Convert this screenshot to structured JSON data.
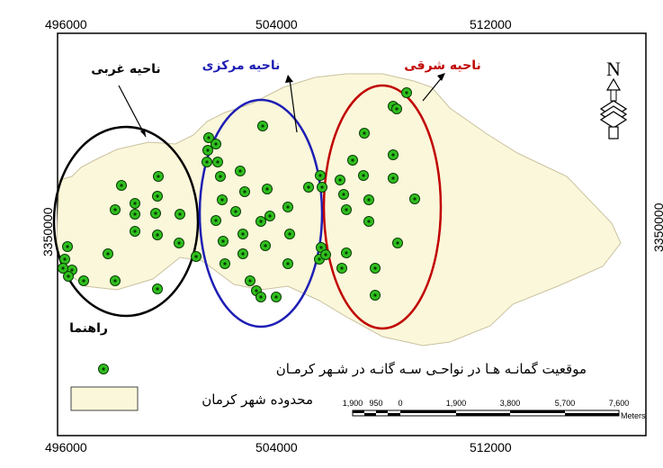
{
  "grid": {
    "top": [
      "496000",
      "504000",
      "512000"
    ],
    "bottom": [
      "496000",
      "504000",
      "512000"
    ],
    "left": "3350000",
    "right": "3350000"
  },
  "regions": {
    "west": {
      "label": "ناحیه غربی",
      "color": "#000000"
    },
    "central": {
      "label": "ناحیه مرکزی",
      "color": "#1e1eb4"
    },
    "east": {
      "label": "ناحیه شرقی",
      "color": "#c00000"
    }
  },
  "north_arrow": {
    "label": "N"
  },
  "legend": {
    "title": "راهنما",
    "points_label": "موقعیت گمانـه هـا در نواحـی سـه گانـه در شـهر کرمـان",
    "area_label": "محدوده شهر کرمان"
  },
  "scale_bar": {
    "ticks": [
      "1,900",
      "950",
      "0",
      "1,900",
      "3,800",
      "5,700",
      "7,600"
    ],
    "unit": "Meters"
  },
  "colors": {
    "city_fill": "#fbf7da",
    "point_fill": "#2fbf1e",
    "point_center": "#0b3a05"
  },
  "boreholes": {
    "west": [
      [
        75,
        274
      ],
      [
        72,
        288
      ],
      [
        80,
        300
      ],
      [
        76,
        307
      ],
      [
        70,
        298
      ],
      [
        93,
        312
      ],
      [
        128,
        312
      ],
      [
        120,
        282
      ],
      [
        128,
        233
      ],
      [
        135,
        206
      ],
      [
        150,
        226
      ],
      [
        150,
        238
      ],
      [
        176,
        196
      ],
      [
        175,
        218
      ],
      [
        173,
        237
      ],
      [
        150,
        257
      ],
      [
        175,
        261
      ],
      [
        200,
        238
      ],
      [
        199,
        270
      ],
      [
        175,
        321
      ],
      [
        218,
        285
      ]
    ],
    "central": [
      [
        232,
        153
      ],
      [
        240,
        160
      ],
      [
        231,
        167
      ],
      [
        230,
        180
      ],
      [
        242,
        180
      ],
      [
        245,
        196
      ],
      [
        267,
        190
      ],
      [
        247,
        222
      ],
      [
        240,
        245
      ],
      [
        262,
        235
      ],
      [
        272,
        213
      ],
      [
        297,
        210
      ],
      [
        300,
        240
      ],
      [
        290,
        246
      ],
      [
        270,
        260
      ],
      [
        248,
        268
      ],
      [
        250,
        293
      ],
      [
        270,
        282
      ],
      [
        295,
        273
      ],
      [
        320,
        293
      ],
      [
        278,
        312
      ],
      [
        285,
        323
      ],
      [
        290,
        330
      ],
      [
        307,
        330
      ],
      [
        320,
        230
      ],
      [
        322,
        260
      ],
      [
        292,
        140
      ]
    ],
    "east": [
      [
        343,
        208
      ],
      [
        356,
        195
      ],
      [
        358,
        208
      ],
      [
        357,
        275
      ],
      [
        355,
        288
      ],
      [
        362,
        283
      ],
      [
        378,
        200
      ],
      [
        382,
        216
      ],
      [
        385,
        233
      ],
      [
        380,
        298
      ],
      [
        385,
        281
      ],
      [
        404,
        195
      ],
      [
        392,
        178
      ],
      [
        405,
        148
      ],
      [
        410,
        222
      ],
      [
        410,
        246
      ],
      [
        417,
        298
      ],
      [
        417,
        328
      ],
      [
        437,
        172
      ],
      [
        437,
        198
      ],
      [
        437,
        118
      ],
      [
        441,
        121
      ],
      [
        452,
        103
      ],
      [
        442,
        270
      ],
      [
        461,
        221
      ]
    ]
  }
}
